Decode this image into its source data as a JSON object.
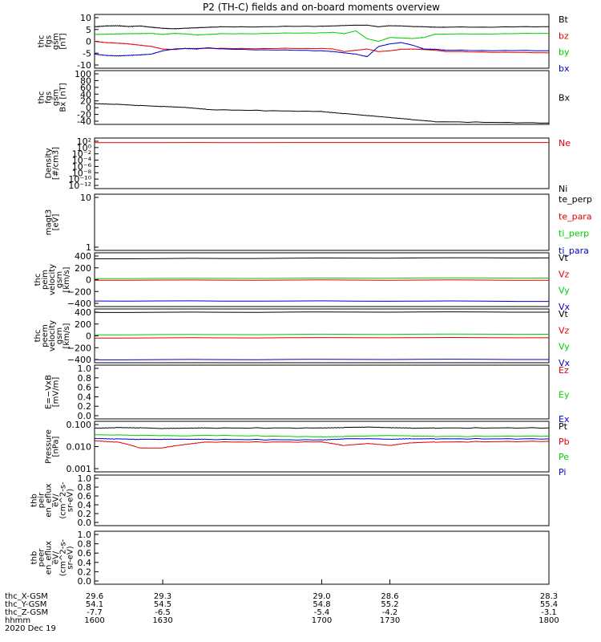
{
  "title": "P2 (TH-C) fields and on-board moments overview",
  "colors": {
    "black": "#000000",
    "red": "#e00000",
    "green": "#00cc00",
    "blue": "#0000c8"
  },
  "chart_data": [
    {
      "type": "line",
      "ylabel": [
        "thc",
        "fgs",
        "gsm",
        "[nT]"
      ],
      "yticks": [
        "10",
        "5",
        "0",
        "-5",
        "-10"
      ],
      "ylim": [
        -10,
        11
      ],
      "series": [
        {
          "name": "Bt",
          "color": "black",
          "x": [
            1600,
            1605,
            1610,
            1615,
            1620,
            1625,
            1630,
            1635,
            1640,
            1645,
            1650,
            1655,
            1700,
            1705,
            1710,
            1715,
            1720,
            1725,
            1730,
            1735,
            1740,
            1745,
            1750,
            1755,
            1800
          ],
          "values": [
            6.2,
            6.5,
            6.6,
            6.3,
            6.5,
            6.0,
            5.6,
            5.4,
            5.6,
            5.8,
            6.0,
            6.1,
            6.4,
            6.5,
            6.7,
            6.8,
            6.8,
            6.2,
            6.6,
            6.5,
            6.3,
            6.2,
            6.0,
            6.0,
            6.2
          ]
        },
        {
          "name": "bz",
          "color": "red",
          "x": [
            1600,
            1605,
            1610,
            1615,
            1620,
            1625,
            1630,
            1635,
            1640,
            1645,
            1650,
            1655,
            1700,
            1705,
            1710,
            1715,
            1720,
            1725,
            1730,
            1735,
            1740,
            1745,
            1750,
            1755,
            1800
          ],
          "values": [
            0.5,
            0.0,
            -0.2,
            -0.5,
            -1.0,
            -1.5,
            -2.5,
            -2.7,
            -2.3,
            -2.3,
            -2.2,
            -2.3,
            -2.3,
            -2.5,
            -3.5,
            -3.0,
            -2.5,
            -3.5,
            -3.2,
            -2.6,
            -2.5,
            -2.7,
            -3.0,
            -3.5,
            -4.0
          ]
        },
        {
          "name": "by",
          "color": "green",
          "x": [
            1600,
            1605,
            1610,
            1615,
            1620,
            1625,
            1630,
            1635,
            1640,
            1645,
            1650,
            1655,
            1700,
            1705,
            1710,
            1715,
            1720,
            1725,
            1730,
            1735,
            1740,
            1745,
            1750,
            1755,
            1800
          ],
          "values": [
            3.2,
            3.3,
            3.4,
            3.5,
            3.5,
            3.6,
            3.2,
            3.6,
            3.4,
            3.0,
            3.2,
            3.4,
            3.8,
            4.0,
            3.5,
            4.6,
            1.5,
            0.5,
            2.0,
            1.8,
            1.6,
            2.0,
            3.3,
            3.3,
            3.6
          ]
        },
        {
          "name": "bx",
          "color": "blue",
          "x": [
            1600,
            1605,
            1610,
            1615,
            1620,
            1625,
            1630,
            1635,
            1640,
            1645,
            1650,
            1655,
            1700,
            1705,
            1710,
            1715,
            1720,
            1725,
            1730,
            1735,
            1740,
            1745,
            1750,
            1755,
            1800
          ],
          "values": [
            -4.5,
            -5.0,
            -5.2,
            -5.0,
            -4.8,
            -4.5,
            -3.2,
            -2.5,
            -2.3,
            -2.5,
            -2.0,
            -2.5,
            -3.2,
            -3.5,
            -4.0,
            -4.5,
            -5.5,
            -1.5,
            -0.5,
            0.0,
            -1.0,
            -2.5,
            -2.6,
            -3.0,
            -3.2
          ]
        }
      ]
    },
    {
      "type": "line",
      "ylabel": [
        "thc",
        "fgs",
        "gsm",
        "Bx [nT]"
      ],
      "yticks": [
        "100",
        "80",
        "60",
        "40",
        "20",
        "0",
        "-20",
        "-40"
      ],
      "ylim": [
        -50,
        110
      ],
      "series": [
        {
          "name": "Bx",
          "color": "black",
          "x": [
            1600,
            1610,
            1620,
            1630,
            1640,
            1650,
            1700,
            1710,
            1720,
            1730,
            1740,
            1750,
            1800
          ],
          "values": [
            12,
            10,
            6,
            3,
            0,
            -6,
            -12,
            -18,
            -24,
            -30,
            -36,
            -42,
            -46
          ]
        }
      ]
    },
    {
      "type": "line",
      "ylabel": [
        "Density",
        "[#/cm3]"
      ],
      "yticks": [
        "10²",
        "10⁰",
        "10⁻²",
        "10⁻⁴",
        "10⁻⁶",
        "10⁻⁸",
        "10⁻¹⁰",
        "10⁻¹²"
      ],
      "log": true,
      "ylim": [
        1e-14,
        1000
      ],
      "series": [
        {
          "name": "Ne",
          "color": "red",
          "x": [
            1600,
            1800
          ],
          "values": [
            30,
            30
          ]
        },
        {
          "name": "Ni",
          "color": "black",
          "x": [],
          "values": []
        }
      ]
    },
    {
      "type": "line",
      "ylabel": [
        "magt3",
        "[eV]"
      ],
      "yticks": [
        "10",
        "1"
      ],
      "log": true,
      "ylim": [
        1,
        10
      ],
      "series": [
        {
          "name": "te_perp",
          "color": "black",
          "x": [],
          "values": []
        },
        {
          "name": "te_para",
          "color": "red",
          "x": [],
          "values": []
        },
        {
          "name": "ti_perp",
          "color": "green",
          "x": [],
          "values": []
        },
        {
          "name": "ti_para",
          "color": "blue",
          "x": [],
          "values": []
        }
      ]
    },
    {
      "type": "line",
      "ylabel": [
        "thc",
        "peim",
        "velocity",
        "gsm",
        "[km/s]"
      ],
      "yticks": [
        "400",
        "200",
        "0",
        "−200",
        "−400"
      ],
      "ylim": [
        -420,
        420
      ],
      "series": [
        {
          "name": "Vt",
          "color": "black",
          "x": [
            1600,
            1800
          ],
          "values": [
            330,
            340
          ]
        },
        {
          "name": "Vz",
          "color": "red",
          "x": [
            1600,
            1800
          ],
          "values": [
            -5,
            -10
          ]
        },
        {
          "name": "Vy",
          "color": "green",
          "x": [
            1600,
            1800
          ],
          "values": [
            20,
            25
          ]
        },
        {
          "name": "Vx",
          "color": "blue",
          "x": [
            1600,
            1800
          ],
          "values": [
            -330,
            -340
          ]
        }
      ]
    },
    {
      "type": "line",
      "ylabel": [
        "thc",
        "peem",
        "velocity",
        "gsm",
        "[km/s]"
      ],
      "yticks": [
        "400",
        "200",
        "0",
        "−200",
        "−400"
      ],
      "ylim": [
        -420,
        420
      ],
      "series": [
        {
          "name": "Vt",
          "color": "black",
          "x": [
            1600,
            1800
          ],
          "values": [
            370,
            370
          ]
        },
        {
          "name": "Vz",
          "color": "red",
          "x": [
            1600,
            1800
          ],
          "values": [
            -30,
            -30
          ]
        },
        {
          "name": "Vy",
          "color": "green",
          "x": [
            1600,
            1800
          ],
          "values": [
            20,
            25
          ]
        },
        {
          "name": "Vx",
          "color": "blue",
          "x": [
            1600,
            1800
          ],
          "values": [
            -370,
            -370
          ]
        }
      ]
    },
    {
      "type": "line",
      "ylabel": [
        "E=−VxB",
        "[mV/m]"
      ],
      "yticks": [
        "1.0",
        "0.8",
        "0.6",
        "0.4",
        "0.2",
        "0.0"
      ],
      "ylim": [
        0,
        1
      ],
      "series": [
        {
          "name": "Ez",
          "color": "red",
          "x": [],
          "values": []
        },
        {
          "name": "Ey",
          "color": "green",
          "x": [],
          "values": []
        },
        {
          "name": "Ex",
          "color": "blue",
          "x": [],
          "values": []
        }
      ]
    },
    {
      "type": "line",
      "ylabel": [
        "Pressure",
        "[nPa]"
      ],
      "yticks": [
        "0.100",
        "0.010",
        "0.001"
      ],
      "log": true,
      "ylim": [
        0.0006,
        0.11
      ],
      "series": [
        {
          "name": "Pt",
          "color": "black",
          "x": [
            1600,
            1610,
            1620,
            1630,
            1640,
            1650,
            1700,
            1710,
            1720,
            1730,
            1740,
            1750,
            1800
          ],
          "values": [
            0.055,
            0.058,
            0.056,
            0.052,
            0.053,
            0.055,
            0.055,
            0.058,
            0.06,
            0.056,
            0.054,
            0.055,
            0.056
          ]
        },
        {
          "name": "Pb",
          "color": "red",
          "x": [
            1600,
            1610,
            1620,
            1630,
            1640,
            1650,
            1700,
            1710,
            1720,
            1730,
            1740,
            1750,
            1800
          ],
          "values": [
            0.015,
            0.013,
            0.007,
            0.007,
            0.01,
            0.013,
            0.013,
            0.009,
            0.011,
            0.009,
            0.012,
            0.013,
            0.014
          ]
        },
        {
          "name": "Pe",
          "color": "green",
          "x": [
            1600,
            1610,
            1620,
            1630,
            1640,
            1650,
            1700,
            1710,
            1720,
            1730,
            1740,
            1750,
            1800
          ],
          "values": [
            0.028,
            0.027,
            0.026,
            0.025,
            0.024,
            0.026,
            0.022,
            0.023,
            0.024,
            0.025,
            0.024,
            0.023,
            0.024
          ]
        },
        {
          "name": "Pi",
          "color": "blue",
          "x": [
            1600,
            1610,
            1620,
            1630,
            1640,
            1650,
            1700,
            1710,
            1720,
            1730,
            1740,
            1750,
            1800
          ],
          "values": [
            0.019,
            0.018,
            0.017,
            0.017,
            0.017,
            0.017,
            0.016,
            0.018,
            0.018,
            0.017,
            0.018,
            0.018,
            0.018
          ]
        }
      ]
    },
    {
      "type": "line",
      "ylabel": [
        "thb",
        "peir",
        "en_eflux",
        "eV/",
        "(cm^2-s-",
        "sr-eV)"
      ],
      "yticks": [
        "1.0",
        "0.8",
        "0.6",
        "0.4",
        "0.2",
        "0.0"
      ],
      "ylim": [
        0,
        1
      ],
      "series": []
    },
    {
      "type": "line",
      "ylabel": [
        "thb",
        "peer",
        "en_eflux",
        "eV/",
        "(cm^2-s-",
        "sr-eV)"
      ],
      "yticks": [
        "1.0",
        "0.8",
        "0.6",
        "0.4",
        "0.2",
        "0.0"
      ],
      "ylim": [
        0,
        1
      ],
      "series": []
    }
  ],
  "xaxis": {
    "xlim": [
      1600,
      1800
    ],
    "row_labels": [
      "thc_X-GSM",
      "thc_Y-GSM",
      "thc_Z-GSM",
      "hhmm",
      "2020 Dec 19"
    ],
    "ticks": [
      {
        "x": 1600,
        "rows": [
          "29.6",
          "54.1",
          "-7.7",
          "1600"
        ]
      },
      {
        "x": 1630,
        "rows": [
          "29.3",
          "54.5",
          "-6.5",
          "1630"
        ]
      },
      {
        "x": 1700,
        "rows": [
          "29.0",
          "54.8",
          "-5.4",
          "1700"
        ]
      },
      {
        "x": 1730,
        "rows": [
          "28.6",
          "55.2",
          "-4.2",
          "1730"
        ]
      },
      {
        "x": 1800,
        "rows": [
          "28.3",
          "55.4",
          "-3.1",
          "1800"
        ]
      }
    ]
  }
}
